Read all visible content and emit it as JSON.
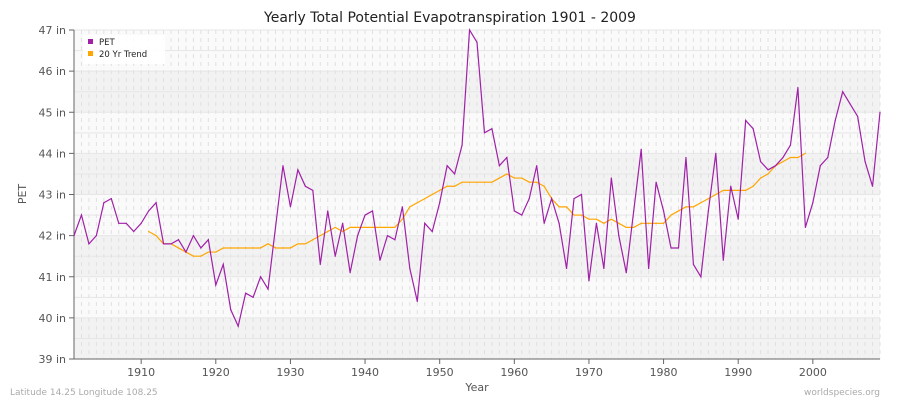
{
  "chart_data": {
    "type": "line",
    "title": "Yearly Total Potential Evapotranspiration 1901 - 2009",
    "xlabel": "Year",
    "ylabel": "PET",
    "xlim": [
      1901,
      2009
    ],
    "ylim": [
      39,
      47
    ],
    "x_ticks": [
      1910,
      1920,
      1930,
      1940,
      1950,
      1960,
      1970,
      1980,
      1990,
      2000
    ],
    "y_ticks": [
      39,
      40,
      41,
      42,
      43,
      44,
      45,
      46,
      47
    ],
    "y_tick_labels": [
      "39 in",
      "40 in",
      "41 in",
      "42 in",
      "43 in",
      "44 in",
      "45 in",
      "46 in",
      "47 in"
    ],
    "grid": true,
    "legend_position": "top-left",
    "series": [
      {
        "name": "PET",
        "color": "#a020a8",
        "x_start": 1901,
        "values": [
          42.0,
          42.5,
          41.8,
          42.0,
          42.8,
          42.9,
          42.3,
          42.3,
          42.1,
          42.3,
          42.6,
          42.8,
          41.8,
          41.8,
          41.9,
          41.6,
          42.0,
          41.7,
          41.9,
          40.8,
          41.3,
          40.2,
          39.8,
          40.6,
          40.5,
          41.0,
          40.7,
          42.2,
          43.7,
          42.7,
          43.6,
          43.2,
          43.1,
          41.3,
          42.6,
          41.5,
          42.3,
          41.1,
          42.0,
          42.5,
          42.6,
          41.4,
          42.0,
          41.9,
          42.7,
          41.2,
          40.4,
          42.3,
          42.1,
          42.8,
          43.7,
          43.5,
          44.2,
          47.0,
          46.7,
          44.5,
          44.6,
          43.7,
          43.9,
          42.6,
          42.5,
          42.9,
          43.7,
          42.3,
          42.9,
          42.3,
          41.2,
          42.9,
          43.0,
          40.9,
          42.3,
          41.2,
          43.4,
          42.0,
          41.1,
          42.6,
          44.1,
          41.2,
          43.3,
          42.6,
          41.7,
          41.7,
          43.9,
          41.3,
          41.0,
          42.6,
          44.0,
          41.4,
          43.2,
          42.4,
          44.8,
          44.6,
          43.8,
          43.6,
          43.7,
          43.9,
          44.2,
          45.6,
          42.2,
          42.8,
          43.7,
          43.9,
          44.8,
          45.5,
          45.2,
          44.9,
          43.8,
          43.2,
          45.0
        ]
      },
      {
        "name": "20 Yr Trend",
        "color": "#ffa500",
        "x_start": 1911,
        "values": [
          42.1,
          42.0,
          41.8,
          41.8,
          41.7,
          41.6,
          41.5,
          41.5,
          41.6,
          41.6,
          41.7,
          41.7,
          41.7,
          41.7,
          41.7,
          41.7,
          41.8,
          41.7,
          41.7,
          41.7,
          41.8,
          41.8,
          41.9,
          42.0,
          42.1,
          42.2,
          42.1,
          42.2,
          42.2,
          42.2,
          42.2,
          42.2,
          42.2,
          42.2,
          42.4,
          42.7,
          42.8,
          42.9,
          43.0,
          43.1,
          43.2,
          43.2,
          43.3,
          43.3,
          43.3,
          43.3,
          43.3,
          43.4,
          43.5,
          43.4,
          43.4,
          43.3,
          43.3,
          43.2,
          42.9,
          42.7,
          42.7,
          42.5,
          42.5,
          42.4,
          42.4,
          42.3,
          42.4,
          42.3,
          42.2,
          42.2,
          42.3,
          42.3,
          42.3,
          42.3,
          42.5,
          42.6,
          42.7,
          42.7,
          42.8,
          42.9,
          43.0,
          43.1,
          43.1,
          43.1,
          43.1,
          43.2,
          43.4,
          43.5,
          43.7,
          43.8,
          43.9,
          43.9,
          44.0
        ]
      }
    ]
  },
  "footer": {
    "left": "Latitude 14.25 Longitude 108.25",
    "right": "worldspecies.org"
  }
}
